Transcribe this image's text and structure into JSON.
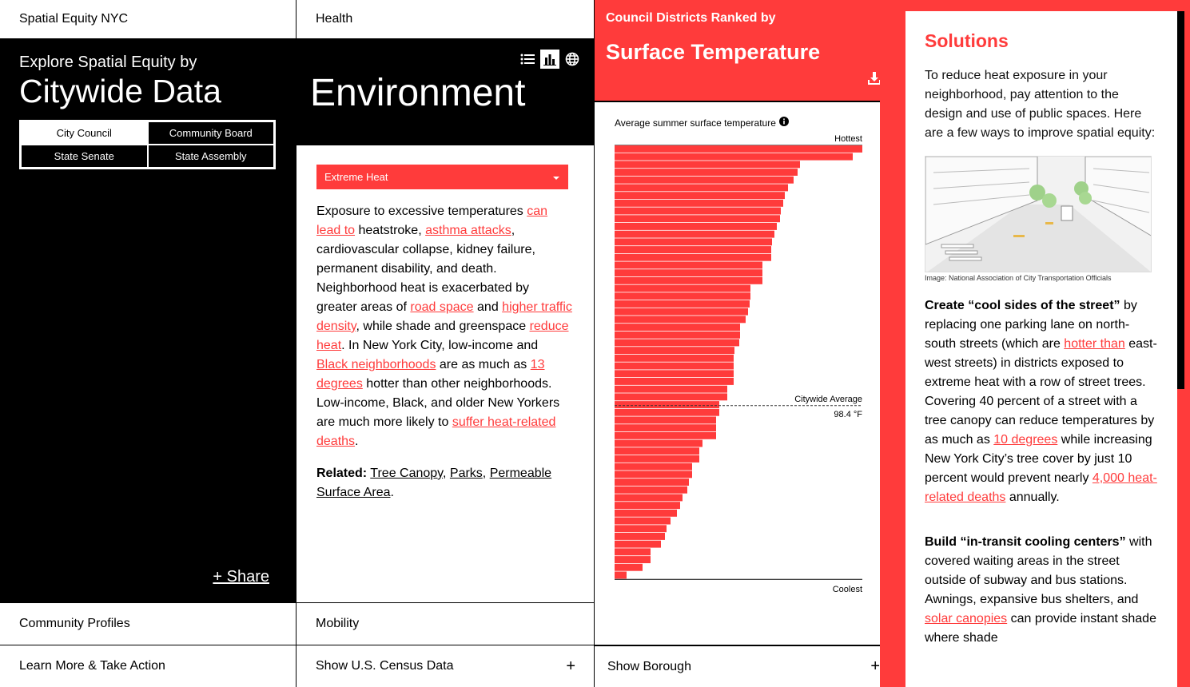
{
  "col1": {
    "site_title": "Spatial Equity NYC",
    "explore": "Explore Spatial Equity by",
    "title": "Citywide Data",
    "geo_buttons": [
      "City Council",
      "Community Board",
      "State Senate",
      "State Assembly"
    ],
    "share": "+ Share",
    "footer": [
      "Community Profiles",
      "Learn More & Take Action"
    ]
  },
  "col2": {
    "category": "Health",
    "title": "Environment",
    "view_icons": [
      "list-icon",
      "bar-chart-icon",
      "globe-icon"
    ],
    "select_value": "Extreme Heat",
    "body": {
      "t1": "Exposure to excessive temperatures ",
      "l1": "can lead to",
      "t2": " heatstroke, ",
      "l2": "asthma attacks",
      "t3": ", cardiovascular collapse, kidney failure, permanent disability, and death. Neighborhood heat is exacerbated by greater areas of ",
      "l3": "road space",
      "t4": " and ",
      "l4": "higher traffic density",
      "t5": ", while shade and greenspace ",
      "l5": "reduce heat",
      "t6": ". In New York City, low-income and ",
      "l6": "Black neighborhoods",
      "t7": " are as much as ",
      "l7": "13 degrees",
      "t8": " hotter than other neighborhoods. Low-income, Black, and older New Yorkers are much more likely to ",
      "l8": "suffer heat-related deaths",
      "t9": "."
    },
    "related_label": "Related:",
    "related": [
      "Tree Canopy",
      "Parks",
      "Permeable Surface Area"
    ],
    "footer": [
      "Mobility",
      "Show U.S. Census Data"
    ],
    "footer_plus": "+"
  },
  "col3": {
    "subtitle": "Council Districts Ranked by",
    "title": "Surface Temperature",
    "chart_label": "Average summer surface temperature",
    "footer": "Show Borough",
    "footer_plus": "+"
  },
  "chart_data": {
    "type": "bar",
    "orientation": "horizontal",
    "title": "Average summer surface temperature",
    "top_label": "Hottest",
    "bottom_label": "Coolest",
    "average_label": "Citywide Average",
    "average_value_label": "98.4 °F",
    "average_rank": 34,
    "values": [
      310,
      298,
      232,
      229,
      224,
      217,
      213,
      211,
      208,
      207,
      203,
      200,
      197,
      196,
      196,
      185,
      185,
      185,
      170,
      170,
      169,
      167,
      164,
      157,
      157,
      156,
      150,
      149,
      149,
      149,
      149,
      141,
      141,
      131,
      131,
      127,
      127,
      127,
      110,
      106,
      106,
      97,
      97,
      93,
      91,
      85,
      82,
      78,
      70,
      65,
      63,
      58,
      45,
      45,
      35,
      15
    ],
    "colors": {
      "bar": "#ff3b3b",
      "average_line": "#333333"
    }
  },
  "col4": {
    "title": "Solutions",
    "intro": "To reduce heat exposure in your neighborhood, pay attention to the design and use of public spaces. Here are a few ways to improve spatial equity:",
    "credit": "Image: National Association of City Transportation Officials",
    "s1": {
      "bold": "Create “cool sides of the street”",
      "t1": " by replacing one parking lane on north-south streets (which are ",
      "l1": "hotter than",
      "t2": " east-west streets) in districts exposed to extreme heat with a row of street trees. Covering 40 percent of a street with a tree canopy can reduce temperatures by as much as ",
      "l2": "10 degrees",
      "t3": " while increasing New York City’s tree cover by just 10 percent would prevent nearly ",
      "l3": "4,000 heat-related deaths",
      "t4": " annually."
    },
    "s2": {
      "bold": "Build “in-transit cooling centers”",
      "t1": " with covered waiting areas in the street outside of subway and bus stations. Awnings, expansive bus shelters, and ",
      "l1": "solar canopies",
      "t2": " can provide instant shade where shade"
    }
  }
}
